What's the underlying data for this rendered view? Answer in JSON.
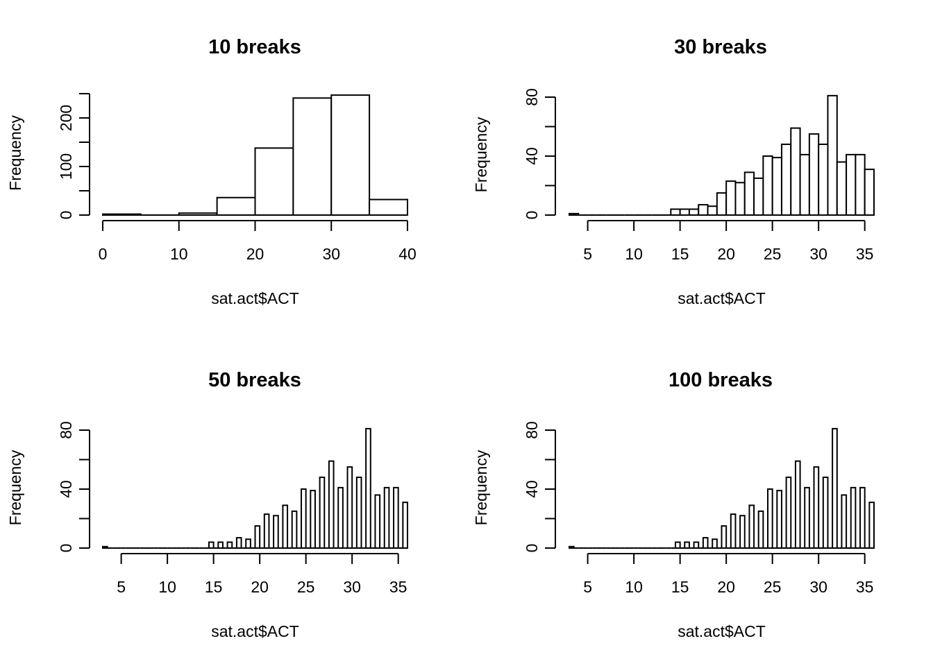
{
  "chart_data": [
    {
      "type": "bar",
      "title": "10 breaks",
      "xlabel": "sat.act$ACT",
      "ylabel": "Frequency",
      "xlim": [
        0,
        40
      ],
      "ylim": [
        0,
        250
      ],
      "xticks": [
        0,
        10,
        20,
        30,
        40
      ],
      "yticks": [
        0,
        100,
        200
      ],
      "yticks_minor": [
        50,
        150,
        250
      ],
      "bin_edges": [
        0,
        5,
        10,
        15,
        20,
        25,
        30,
        35,
        40
      ],
      "values": [
        2,
        0,
        4,
        36,
        138,
        241,
        247,
        32
      ]
    },
    {
      "type": "bar",
      "title": "30 breaks",
      "xlabel": "sat.act$ACT",
      "ylabel": "Frequency",
      "xlim": [
        3,
        36
      ],
      "ylim": [
        0,
        80
      ],
      "xticks": [
        5,
        10,
        15,
        20,
        25,
        30,
        35
      ],
      "yticks": [
        0,
        40,
        80
      ],
      "yticks_minor": [
        20,
        60
      ],
      "bin_edges": [
        3,
        4,
        5,
        6,
        7,
        8,
        9,
        10,
        11,
        12,
        13,
        14,
        15,
        16,
        17,
        18,
        19,
        20,
        21,
        22,
        23,
        24,
        25,
        26,
        27,
        28,
        29,
        30,
        31,
        32,
        33,
        34,
        35,
        36
      ],
      "values": [
        1,
        0,
        0,
        0,
        0,
        0,
        0,
        0,
        0,
        0,
        0,
        4,
        4,
        4,
        7,
        6,
        15,
        23,
        22,
        29,
        25,
        40,
        39,
        48,
        59,
        41,
        55,
        48,
        81,
        36,
        41,
        41,
        31
      ]
    },
    {
      "type": "bar",
      "title": "50 breaks",
      "xlabel": "sat.act$ACT",
      "ylabel": "Frequency",
      "xlim": [
        3,
        36
      ],
      "ylim": [
        0,
        80
      ],
      "xticks": [
        5,
        10,
        15,
        20,
        25,
        30,
        35
      ],
      "yticks": [
        0,
        40,
        80
      ],
      "yticks_minor": [
        20,
        60
      ],
      "bin_edges": [
        3,
        3.5,
        4,
        4.5,
        5,
        5.5,
        6,
        6.5,
        7,
        7.5,
        8,
        8.5,
        9,
        9.5,
        10,
        10.5,
        11,
        11.5,
        12,
        12.5,
        13,
        13.5,
        14,
        14.5,
        15,
        15.5,
        16,
        16.5,
        17,
        17.5,
        18,
        18.5,
        19,
        19.5,
        20,
        20.5,
        21,
        21.5,
        22,
        22.5,
        23,
        23.5,
        24,
        24.5,
        25,
        25.5,
        26,
        26.5,
        27,
        27.5,
        28,
        28.5,
        29,
        29.5,
        30,
        30.5,
        31,
        31.5,
        32,
        32.5,
        33,
        33.5,
        34,
        34.5,
        35,
        35.5,
        36
      ],
      "values": [
        1,
        0,
        0,
        0,
        0,
        0,
        0,
        0,
        0,
        0,
        0,
        0,
        0,
        0,
        0,
        0,
        0,
        0,
        0,
        0,
        0,
        0,
        0,
        4,
        0,
        4,
        0,
        4,
        0,
        7,
        0,
        6,
        0,
        15,
        0,
        23,
        0,
        22,
        0,
        29,
        0,
        25,
        0,
        40,
        0,
        39,
        0,
        48,
        0,
        59,
        0,
        41,
        0,
        55,
        0,
        48,
        0,
        81,
        0,
        36,
        0,
        41,
        0,
        41,
        0,
        31
      ]
    },
    {
      "type": "bar",
      "title": "100 breaks",
      "xlabel": "sat.act$ACT",
      "ylabel": "Frequency",
      "xlim": [
        3,
        36
      ],
      "ylim": [
        0,
        80
      ],
      "xticks": [
        5,
        10,
        15,
        20,
        25,
        30,
        35
      ],
      "yticks": [
        0,
        40,
        80
      ],
      "yticks_minor": [
        20,
        60
      ],
      "bin_edges": [
        3,
        3.5,
        4,
        4.5,
        5,
        5.5,
        6,
        6.5,
        7,
        7.5,
        8,
        8.5,
        9,
        9.5,
        10,
        10.5,
        11,
        11.5,
        12,
        12.5,
        13,
        13.5,
        14,
        14.5,
        15,
        15.5,
        16,
        16.5,
        17,
        17.5,
        18,
        18.5,
        19,
        19.5,
        20,
        20.5,
        21,
        21.5,
        22,
        22.5,
        23,
        23.5,
        24,
        24.5,
        25,
        25.5,
        26,
        26.5,
        27,
        27.5,
        28,
        28.5,
        29,
        29.5,
        30,
        30.5,
        31,
        31.5,
        32,
        32.5,
        33,
        33.5,
        34,
        34.5,
        35,
        35.5,
        36
      ],
      "values": [
        1,
        0,
        0,
        0,
        0,
        0,
        0,
        0,
        0,
        0,
        0,
        0,
        0,
        0,
        0,
        0,
        0,
        0,
        0,
        0,
        0,
        0,
        0,
        4,
        0,
        4,
        0,
        4,
        0,
        7,
        0,
        6,
        0,
        15,
        0,
        23,
        0,
        22,
        0,
        29,
        0,
        25,
        0,
        40,
        0,
        39,
        0,
        48,
        0,
        59,
        0,
        41,
        0,
        55,
        0,
        48,
        0,
        81,
        0,
        36,
        0,
        41,
        0,
        41,
        0,
        31
      ]
    }
  ]
}
